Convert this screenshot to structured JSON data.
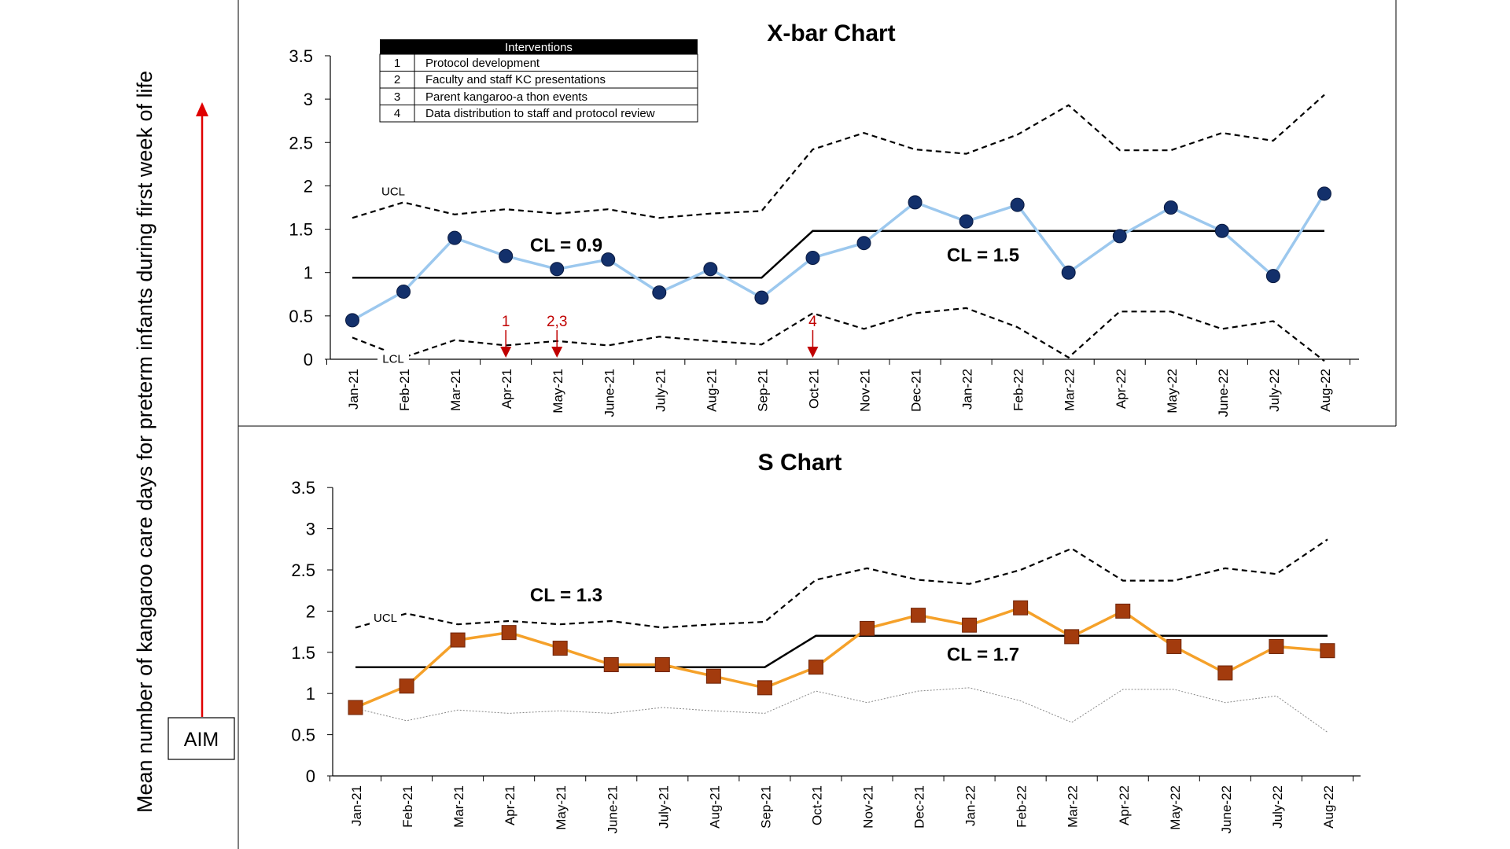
{
  "y_axis_label": "Mean number of kangaroo care days for preterm infants during first week of life",
  "aim_label": "AIM",
  "interventions": {
    "header": "Interventions",
    "rows": [
      {
        "num": "1",
        "text": "Protocol development"
      },
      {
        "num": "2",
        "text": "Faculty and staff KC presentations"
      },
      {
        "num": "3",
        "text": "Parent kangaroo-a thon events"
      },
      {
        "num": "4",
        "text": "Data distribution to staff and protocol review"
      }
    ]
  },
  "chart_data": [
    {
      "type": "line",
      "title": "X-bar Chart",
      "categories": [
        "Jan-21",
        "Feb-21",
        "Mar-21",
        "Apr-21",
        "May-21",
        "June-21",
        "July-21",
        "Aug-21",
        "Sep-21",
        "Oct-21",
        "Nov-21",
        "Dec-21",
        "Jan-22",
        "Feb-22",
        "Mar-22",
        "Apr-22",
        "May-22",
        "June-22",
        "July-22",
        "Aug-22"
      ],
      "ylim": [
        0,
        3.5
      ],
      "yticks": [
        "0",
        "0.5",
        "1",
        "1.5",
        "2",
        "2.5",
        "3",
        "3.5"
      ],
      "series": [
        {
          "name": "",
          "color": "#9cc8ee",
          "marker": "circle",
          "marker_color": "#13306b",
          "values": [
            0.45,
            0.78,
            1.4,
            1.19,
            1.04,
            1.15,
            0.77,
            1.04,
            0.71,
            1.17,
            1.34,
            1.81,
            1.59,
            1.78,
            1.0,
            1.42,
            1.75,
            1.48,
            0.96,
            1.91
          ]
        }
      ],
      "ucl": [
        1.63,
        1.81,
        1.67,
        1.73,
        1.68,
        1.73,
        1.63,
        1.68,
        1.71,
        2.42,
        2.61,
        2.42,
        2.37,
        2.59,
        2.93,
        2.41,
        2.41,
        2.61,
        2.52,
        3.05
      ],
      "lcl": [
        0.25,
        0.02,
        0.22,
        0.16,
        0.21,
        0.16,
        0.26,
        0.21,
        0.17,
        0.53,
        0.35,
        0.53,
        0.59,
        0.37,
        0.02,
        0.55,
        0.55,
        0.35,
        0.44,
        -0.02
      ],
      "center_line": [
        0.94,
        0.94,
        0.94,
        0.94,
        0.94,
        0.94,
        0.94,
        0.94,
        0.94,
        1.48,
        1.48,
        1.48,
        1.48,
        1.48,
        1.48,
        1.48,
        1.48,
        1.48,
        1.48,
        1.48
      ],
      "center_labels": [
        "CL = 0.9",
        "CL = 1.5"
      ],
      "limit_labels": {
        "ucl": "UCL",
        "lcl": "LCL"
      },
      "annotations": [
        {
          "text": "1",
          "category": "Apr-21"
        },
        {
          "text": "2,3",
          "category": "May-21"
        },
        {
          "text": "4",
          "category": "Oct-21"
        }
      ],
      "grid": false
    },
    {
      "type": "line",
      "title": "S Chart",
      "categories": [
        "Jan-21",
        "Feb-21",
        "Mar-21",
        "Apr-21",
        "May-21",
        "June-21",
        "July-21",
        "Aug-21",
        "Sep-21",
        "Oct-21",
        "Nov-21",
        "Dec-21",
        "Jan-22",
        "Feb-22",
        "Mar-22",
        "Apr-22",
        "May-22",
        "June-22",
        "July-22",
        "Aug-22"
      ],
      "ylim": [
        0,
        3.5
      ],
      "yticks": [
        "0",
        "0.5",
        "1",
        "1.5",
        "2",
        "2.5",
        "3",
        "3.5"
      ],
      "series": [
        {
          "name": "",
          "color": "#f5a12a",
          "marker": "square",
          "marker_color": "#a33b0d",
          "values": [
            0.83,
            1.09,
            1.65,
            1.74,
            1.55,
            1.35,
            1.35,
            1.21,
            1.07,
            1.32,
            1.79,
            1.95,
            1.83,
            2.04,
            1.69,
            2.0,
            1.57,
            1.25,
            1.57,
            1.52
          ]
        }
      ],
      "ucl": [
        1.8,
        1.97,
        1.84,
        1.88,
        1.84,
        1.88,
        1.8,
        1.84,
        1.87,
        2.38,
        2.52,
        2.38,
        2.33,
        2.5,
        2.76,
        2.37,
        2.37,
        2.52,
        2.45,
        2.87
      ],
      "lcl": [
        0.82,
        0.67,
        0.8,
        0.76,
        0.79,
        0.76,
        0.83,
        0.79,
        0.76,
        1.03,
        0.89,
        1.03,
        1.07,
        0.91,
        0.65,
        1.05,
        1.05,
        0.89,
        0.97,
        0.53
      ],
      "center_line": [
        1.32,
        1.32,
        1.32,
        1.32,
        1.32,
        1.32,
        1.32,
        1.32,
        1.32,
        1.7,
        1.7,
        1.7,
        1.7,
        1.7,
        1.7,
        1.7,
        1.7,
        1.7,
        1.7,
        1.7
      ],
      "center_labels": [
        "CL = 1.3",
        "CL = 1.7"
      ],
      "limit_labels": {
        "ucl": "UCL"
      },
      "grid": false
    }
  ]
}
